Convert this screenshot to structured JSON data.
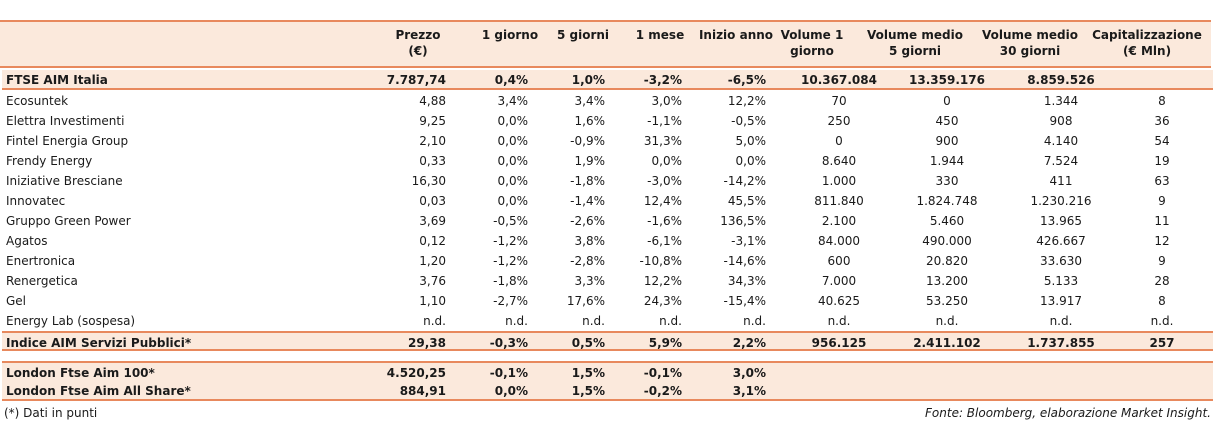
{
  "headers": [
    "Prezzo\n(€)",
    "1 giorno",
    "5 giorni",
    "1 mese",
    "Inizio anno",
    "Volume 1\ngiorno",
    "Volume medio\n5 giorni",
    "Volume medio\n30 giorni",
    "Capitalizzazione\n(€ Mln)"
  ],
  "index_row": {
    "name": "FTSE AIM Italia",
    "vals": [
      "7.787,74",
      "0,4%",
      "1,0%",
      "-3,2%",
      "-6,5%",
      "10.367.084",
      "13.359.176",
      "8.859.526",
      ""
    ]
  },
  "rows": [
    {
      "name": "Ecosuntek",
      "vals": [
        "4,88",
        "3,4%",
        "3,4%",
        "3,0%",
        "12,2%",
        "70",
        "0",
        "1.344",
        "8"
      ]
    },
    {
      "name": "Elettra Investimenti",
      "vals": [
        "9,25",
        "0,0%",
        "1,6%",
        "-1,1%",
        "-0,5%",
        "250",
        "450",
        "908",
        "36"
      ]
    },
    {
      "name": "Fintel Energia Group",
      "vals": [
        "2,10",
        "0,0%",
        "-0,9%",
        "31,3%",
        "5,0%",
        "0",
        "900",
        "4.140",
        "54"
      ]
    },
    {
      "name": "Frendy Energy",
      "vals": [
        "0,33",
        "0,0%",
        "1,9%",
        "0,0%",
        "0,0%",
        "8.640",
        "1.944",
        "7.524",
        "19"
      ]
    },
    {
      "name": "Iniziative Bresciane",
      "vals": [
        "16,30",
        "0,0%",
        "-1,8%",
        "-3,0%",
        "-14,2%",
        "1.000",
        "330",
        "411",
        "63"
      ]
    },
    {
      "name": "Innovatec",
      "vals": [
        "0,03",
        "0,0%",
        "-1,4%",
        "12,4%",
        "45,5%",
        "811.840",
        "1.824.748",
        "1.230.216",
        "9"
      ]
    },
    {
      "name": "Gruppo Green Power",
      "vals": [
        "3,69",
        "-0,5%",
        "-2,6%",
        "-1,6%",
        "136,5%",
        "2.100",
        "5.460",
        "13.965",
        "11"
      ]
    },
    {
      "name": "Agatos",
      "vals": [
        "0,12",
        "-1,2%",
        "3,8%",
        "-6,1%",
        "-3,1%",
        "84.000",
        "490.000",
        "426.667",
        "12"
      ]
    },
    {
      "name": "Enertronica",
      "vals": [
        "1,20",
        "-1,2%",
        "-2,8%",
        "-10,8%",
        "-14,6%",
        "600",
        "20.820",
        "33.630",
        "9"
      ]
    },
    {
      "name": "Renergetica",
      "vals": [
        "3,76",
        "-1,8%",
        "3,3%",
        "12,2%",
        "34,3%",
        "7.000",
        "13.200",
        "5.133",
        "28"
      ]
    },
    {
      "name": "Gel",
      "vals": [
        "1,10",
        "-2,7%",
        "17,6%",
        "24,3%",
        "-15,4%",
        "40.625",
        "53.250",
        "13.917",
        "8"
      ]
    },
    {
      "name": "Energy Lab (sospesa)",
      "vals": [
        "n.d.",
        "n.d.",
        "n.d.",
        "n.d.",
        "n.d.",
        "n.d.",
        "n.d.",
        "n.d.",
        "n.d."
      ]
    }
  ],
  "aim_row": {
    "name": "Indice AIM Servizi Pubblici*",
    "vals": [
      "29,38",
      "-0,3%",
      "0,5%",
      "5,9%",
      "2,2%",
      "956.125",
      "2.411.102",
      "1.737.855",
      "257"
    ]
  },
  "london_rows": [
    {
      "name": "London Ftse Aim 100*",
      "vals": [
        "4.520,25",
        "-0,1%",
        "1,5%",
        "-0,1%",
        "3,0%",
        "",
        "",
        "",
        ""
      ]
    },
    {
      "name": "London Ftse Aim All Share*",
      "vals": [
        "884,91",
        "0,0%",
        "1,5%",
        "-0,2%",
        "3,1%",
        "",
        "",
        "",
        ""
      ]
    }
  ],
  "footnote": "(*) Dati in punti",
  "source": "Fonte: Bloomberg, elaborazione Market Insight.",
  "colors": {
    "accent": "#e8895d",
    "band": "#fbe9dc"
  }
}
